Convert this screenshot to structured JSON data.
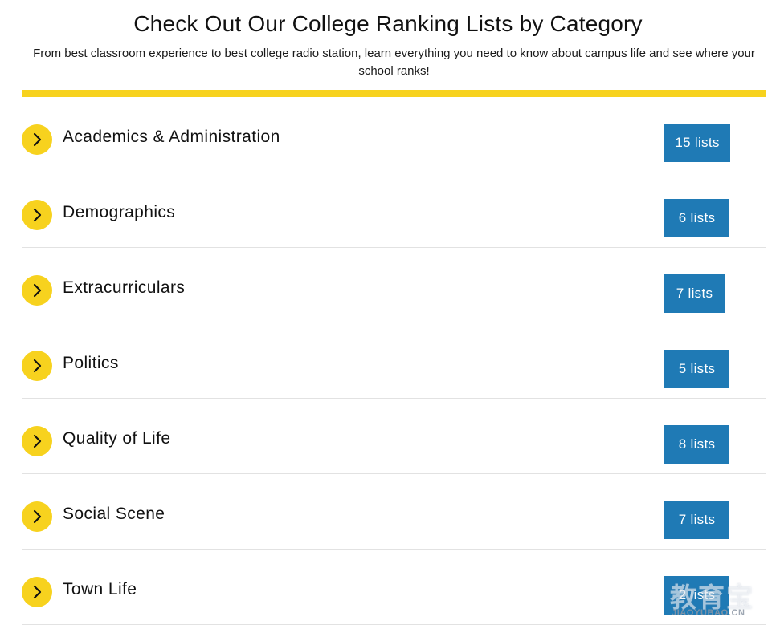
{
  "header": {
    "title": "Check Out Our College Ranking Lists by Category",
    "subtitle": "From best classroom experience to best college radio station, learn everything you need to know about campus life and see where your school ranks!"
  },
  "accent_colors": {
    "yellow": "#f7d21e",
    "badge_blue": "#1f7ab5"
  },
  "categories": [
    {
      "label": "Academics & Administration",
      "count": "15 lists",
      "icon": "chevron-right-icon"
    },
    {
      "label": "Demographics",
      "count": "6 lists",
      "icon": "chevron-right-icon"
    },
    {
      "label": "Extracurriculars",
      "count": "7 lists",
      "icon": "chevron-right-icon"
    },
    {
      "label": "Politics",
      "count": "5 lists",
      "icon": "chevron-right-icon"
    },
    {
      "label": "Quality of Life",
      "count": "8 lists",
      "icon": "chevron-right-icon"
    },
    {
      "label": "Social Scene",
      "count": "7 lists",
      "icon": "chevron-right-icon"
    },
    {
      "label": "Town Life",
      "count": "2 lists",
      "icon": "chevron-right-icon"
    }
  ],
  "watermark": {
    "main": "教育宝",
    "sub": "JIAOYUBAO.CN"
  }
}
